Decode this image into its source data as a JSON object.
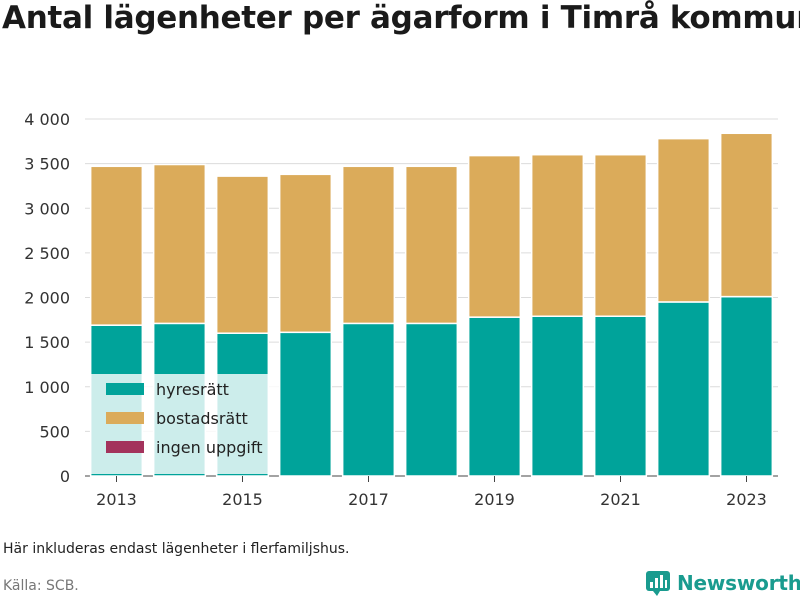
{
  "title": "Antal lägenheter per ägarform i Timrå kommun",
  "note": "Här inkluderas endast lägenheter i flerfamiljshus.",
  "source": "Källa: SCB.",
  "brand": {
    "name": "Newsworthy",
    "icon": "newsworthy-logo-icon",
    "color": "#1a9b8f"
  },
  "chart_data": {
    "type": "bar",
    "stacked": true,
    "categories": [
      "2013",
      "2014",
      "2015",
      "2016",
      "2017",
      "2018",
      "2019",
      "2020",
      "2021",
      "2022",
      "2023"
    ],
    "x_tick_labels": [
      "2013",
      "2015",
      "2017",
      "2019",
      "2021",
      "2023"
    ],
    "series": [
      {
        "name": "hyresrätt",
        "color": "#00a39a",
        "values": [
          1690,
          1710,
          1600,
          1610,
          1710,
          1710,
          1780,
          1790,
          1790,
          1950,
          2010
        ]
      },
      {
        "name": "bostadsrätt",
        "color": "#dbab5a",
        "values": [
          1780,
          1780,
          1760,
          1770,
          1760,
          1760,
          1810,
          1810,
          1810,
          1830,
          1830
        ]
      },
      {
        "name": "ingen uppgift",
        "color": "#a3335c",
        "values": [
          0,
          0,
          0,
          0,
          0,
          0,
          0,
          0,
          0,
          0,
          0
        ]
      }
    ],
    "y_ticks": [
      0,
      500,
      1000,
      1500,
      2000,
      2500,
      3000,
      3500,
      4000
    ],
    "y_tick_labels": [
      "0",
      "500",
      "1 000",
      "1 500",
      "2 000",
      "2 500",
      "3 000",
      "3 500",
      "4 000"
    ],
    "ylim": [
      0,
      4000
    ],
    "grid": true,
    "legend_position": "bottom-left"
  }
}
